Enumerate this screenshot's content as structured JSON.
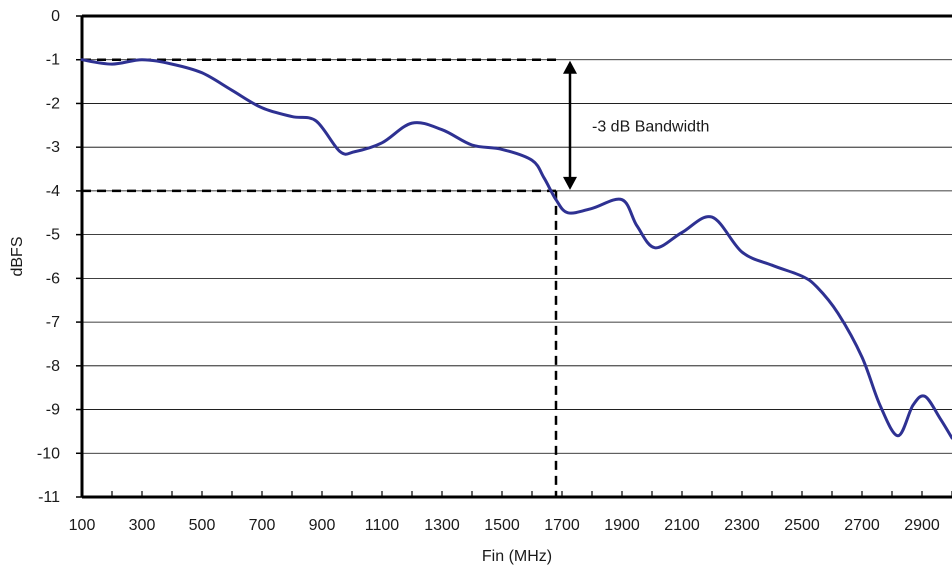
{
  "chart_data": {
    "type": "line",
    "title": "",
    "xlabel": "Fin (MHz)",
    "ylabel": "dBFS",
    "xlim": [
      100,
      3000
    ],
    "ylim": [
      -11,
      0
    ],
    "x_ticks": [
      100,
      300,
      500,
      700,
      900,
      1100,
      1300,
      1500,
      1700,
      1900,
      2100,
      2300,
      2500,
      2700,
      2900
    ],
    "y_ticks": [
      0,
      -1,
      -2,
      -3,
      -4,
      -5,
      -6,
      -7,
      -8,
      -9,
      -10,
      -11
    ],
    "grid": "horizontal",
    "colors": {
      "series": "#2e3192",
      "grid": "#000000",
      "annotation": "#000000"
    },
    "series": [
      {
        "name": "",
        "x": [
          100,
          200,
          300,
          400,
          500,
          600,
          700,
          800,
          880,
          960,
          1010,
          1100,
          1200,
          1300,
          1400,
          1500,
          1600,
          1640,
          1680,
          1720,
          1800,
          1900,
          1950,
          2010,
          2100,
          2200,
          2300,
          2400,
          2500,
          2550,
          2620,
          2700,
          2760,
          2820,
          2870,
          2910,
          2960,
          3000
        ],
        "y": [
          -1.0,
          -1.1,
          -1.0,
          -1.1,
          -1.3,
          -1.7,
          -2.1,
          -2.3,
          -2.4,
          -3.1,
          -3.1,
          -2.9,
          -2.45,
          -2.6,
          -2.95,
          -3.05,
          -3.3,
          -3.7,
          -4.2,
          -4.5,
          -4.4,
          -4.2,
          -4.8,
          -5.3,
          -4.95,
          -4.6,
          -5.4,
          -5.7,
          -5.95,
          -6.2,
          -6.8,
          -7.8,
          -8.9,
          -9.6,
          -8.9,
          -8.7,
          -9.2,
          -9.65
        ]
      }
    ],
    "annotations": [
      {
        "label": "-3 dB Bandwidth",
        "type": "bandwidth-arrow",
        "x": 1680,
        "y_top": -1,
        "y_bottom": -4
      }
    ]
  }
}
